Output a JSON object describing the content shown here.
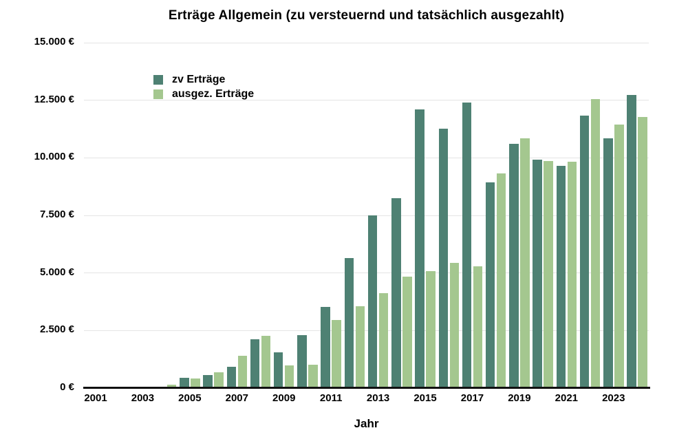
{
  "chart_data": {
    "type": "bar",
    "title": "Erträge Allgemein (zu versteuernd und tatsächlich ausgezahlt)",
    "xlabel": "Jahr",
    "ylabel": "",
    "ylim": [
      0,
      15000
    ],
    "ytick_step": 2500,
    "ytick_labels": [
      "0 €",
      "2.500 €",
      "5.000 €",
      "7.500 €",
      "10.000 €",
      "12.500 €",
      "15.000 €"
    ],
    "xtick_labels": [
      "2001",
      "2003",
      "2005",
      "2007",
      "2009",
      "2011",
      "2013",
      "2015",
      "2017",
      "2019",
      "2021",
      "2023"
    ],
    "grid": true,
    "legend_position": "top-left",
    "background": "#ffffff",
    "gridline_color": "#e4e4e4",
    "axis_color": "#111111",
    "categories": [
      2001,
      2002,
      2003,
      2004,
      2005,
      2006,
      2007,
      2008,
      2009,
      2010,
      2011,
      2012,
      2013,
      2014,
      2015,
      2016,
      2017,
      2018,
      2019,
      2020,
      2021,
      2022,
      2023,
      2024
    ],
    "series": [
      {
        "name": "zv Erträge",
        "color": "#4e8173",
        "values": [
          0,
          0,
          0,
          60,
          440,
          560,
          930,
          2130,
          1560,
          2290,
          3540,
          5640,
          7500,
          8250,
          12100,
          11260,
          12400,
          8940,
          10620,
          9920,
          9660,
          11830,
          10860,
          12720
        ]
      },
      {
        "name": "ausgez. Erträge",
        "color": "#a4c78f",
        "values": [
          0,
          0,
          0,
          160,
          410,
          680,
          1400,
          2270,
          1000,
          1020,
          2970,
          3570,
          4110,
          4830,
          5070,
          5430,
          5280,
          9330,
          10840,
          9860,
          9840,
          12560,
          11440,
          11780
        ]
      }
    ]
  }
}
